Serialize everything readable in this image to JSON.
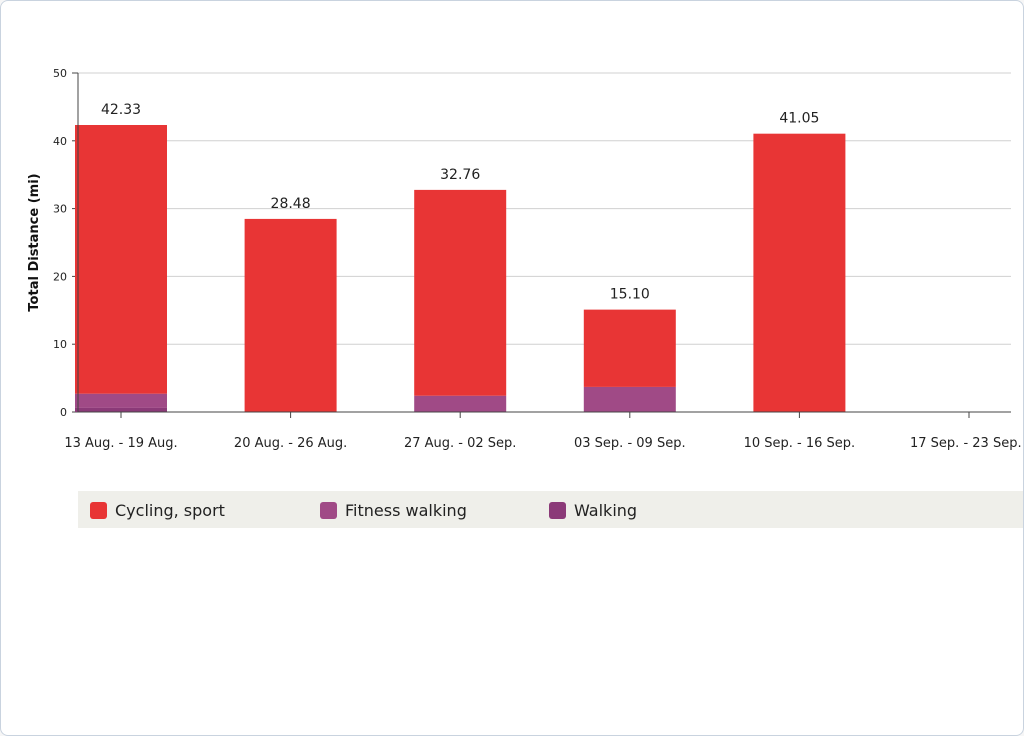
{
  "chart_data": {
    "type": "bar",
    "stacked": true,
    "ylabel": "Total Distance (mi)",
    "ylim": [
      0,
      50
    ],
    "yticks": [
      0,
      10,
      20,
      30,
      40,
      50
    ],
    "grid": true,
    "legend_position": "bottom",
    "categories": [
      "13 Aug. - 19 Aug.",
      "20 Aug. - 26 Aug.",
      "27 Aug. - 02 Sep.",
      "03 Sep. - 09 Sep.",
      "10 Sep. - 16 Sep.",
      "17 Sep. - 23 Sep."
    ],
    "totals": [
      "42.33",
      "28.48",
      "32.76",
      "15.10",
      "41.05",
      ""
    ],
    "series": [
      {
        "name": "Walking",
        "color": "#8b3a78",
        "values": [
          0.6,
          0,
          0,
          0,
          0,
          0
        ]
      },
      {
        "name": "Fitness walking",
        "color": "#a04a86",
        "values": [
          2.1,
          0,
          2.4,
          3.7,
          0,
          0
        ]
      },
      {
        "name": "Cycling, sport",
        "color": "#e83535",
        "values": [
          39.63,
          28.48,
          30.36,
          11.4,
          41.05,
          0
        ]
      }
    ]
  },
  "legend": {
    "items": [
      {
        "label": "Cycling, sport",
        "color": "#e83535"
      },
      {
        "label": "Fitness walking",
        "color": "#a04a86"
      },
      {
        "label": "Walking",
        "color": "#8b3a78"
      }
    ]
  }
}
